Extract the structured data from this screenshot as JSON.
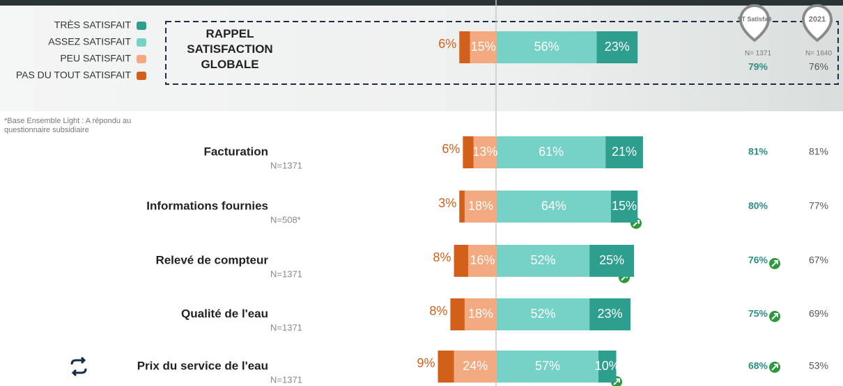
{
  "chart_data": {
    "type": "diverging-bar",
    "categories": [
      "RAPPEL SATISFACTION GLOBALE",
      "Facturation",
      "Informations fournies",
      "Relevé de compteur",
      "Qualité de l'eau",
      "Prix du service de l'eau"
    ],
    "n_labels": [
      null,
      "N=1371",
      "N=508*",
      "N=1371",
      "N=1371",
      "N=1371"
    ],
    "series": [
      {
        "name": "TRÈS SATISFAIT",
        "color": "#2e9e8f",
        "values": [
          23,
          21,
          15,
          25,
          23,
          10
        ],
        "value_labels": [
          "23%",
          "21%",
          "15%",
          "25%",
          "23%",
          "10%"
        ]
      },
      {
        "name": "ASSEZ SATISFAIT",
        "color": "#76d1c6",
        "values": [
          56,
          61,
          64,
          52,
          52,
          57
        ],
        "value_labels": [
          "56%",
          "61%",
          "64%",
          "52%",
          "52%",
          "57%"
        ]
      },
      {
        "name": "PEU SATISFAIT",
        "color": "#f3aa80",
        "values": [
          15,
          13,
          18,
          16,
          18,
          24
        ],
        "value_labels": [
          "15%",
          "13%",
          "18%",
          "16%",
          "18%",
          "24%"
        ]
      },
      {
        "name": "PAS DU TOUT SATISFAIT",
        "color": "#d3601a",
        "values": [
          6,
          6,
          3,
          8,
          8,
          9
        ],
        "value_labels": [
          "6%",
          "6%",
          "3%",
          "8%",
          "8%",
          "9%"
        ]
      }
    ],
    "st_satisfait": {
      "header": "ST Satisfait",
      "n": "N= 1371",
      "values": [
        79,
        81,
        80,
        76,
        75,
        68
      ],
      "value_labels": [
        "79%",
        "81%",
        "80%",
        "76%",
        "75%",
        "68%"
      ]
    },
    "previous": {
      "header": "2021",
      "n": "N= 1640",
      "values": [
        76,
        81,
        77,
        67,
        69,
        53
      ],
      "value_labels": [
        "76%",
        "81%",
        "77%",
        "67%",
        "69%",
        "53%"
      ]
    },
    "footnote": "*Base Ensemble Light : A répondu au questionnaire subsidiaire"
  }
}
